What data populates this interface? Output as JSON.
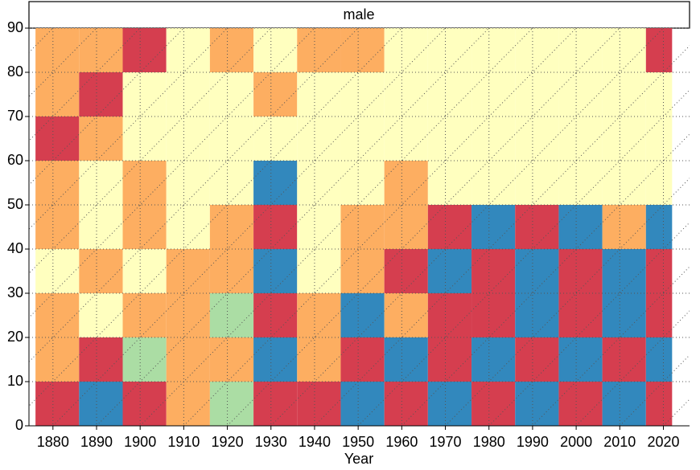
{
  "chart_data": {
    "type": "heatmap",
    "title": "male",
    "x_label": "Year",
    "x_bins": [
      1876,
      1886,
      1896,
      1906,
      1916,
      1926,
      1936,
      1946,
      1956,
      1966,
      1976,
      1986,
      1996,
      2006,
      2016,
      2022
    ],
    "y_bins": [
      0,
      10,
      20,
      30,
      40,
      50,
      60,
      70,
      80,
      90
    ],
    "values": [
      [
        0,
        4,
        0,
        1,
        3,
        0,
        0,
        4,
        0,
        4,
        0,
        4,
        0,
        4,
        0
      ],
      [
        1,
        0,
        3,
        1,
        1,
        4,
        1,
        0,
        4,
        0,
        4,
        0,
        4,
        0,
        4
      ],
      [
        1,
        2,
        1,
        1,
        3,
        0,
        1,
        4,
        1,
        0,
        0,
        4,
        0,
        4,
        0
      ],
      [
        2,
        1,
        2,
        1,
        1,
        4,
        2,
        1,
        0,
        4,
        0,
        4,
        0,
        4,
        0
      ],
      [
        1,
        2,
        1,
        2,
        1,
        0,
        2,
        1,
        1,
        0,
        4,
        0,
        4,
        1,
        4
      ],
      [
        1,
        2,
        1,
        2,
        2,
        4,
        2,
        2,
        1,
        2,
        2,
        2,
        2,
        2,
        2
      ],
      [
        0,
        1,
        2,
        2,
        2,
        2,
        2,
        2,
        2,
        2,
        2,
        2,
        2,
        2,
        2
      ],
      [
        1,
        0,
        2,
        2,
        2,
        1,
        2,
        2,
        2,
        2,
        2,
        2,
        2,
        2,
        2
      ],
      [
        1,
        1,
        0,
        2,
        1,
        2,
        1,
        1,
        2,
        2,
        2,
        2,
        2,
        2,
        0
      ]
    ],
    "colors": [
      "#d53e4f",
      "#fdae61",
      "#ffffbf",
      "#abdda4",
      "#3288bd"
    ],
    "xlim": [
      1874.5,
      2026
    ],
    "ylim": [
      0,
      90
    ],
    "xticks": [
      1880,
      1890,
      1900,
      1910,
      1920,
      1930,
      1940,
      1950,
      1960,
      1970,
      1980,
      1990,
      2000,
      2010,
      2020
    ],
    "yticks": [
      0,
      10,
      20,
      30,
      40,
      50,
      60,
      70,
      80,
      90
    ],
    "grid": true
  }
}
